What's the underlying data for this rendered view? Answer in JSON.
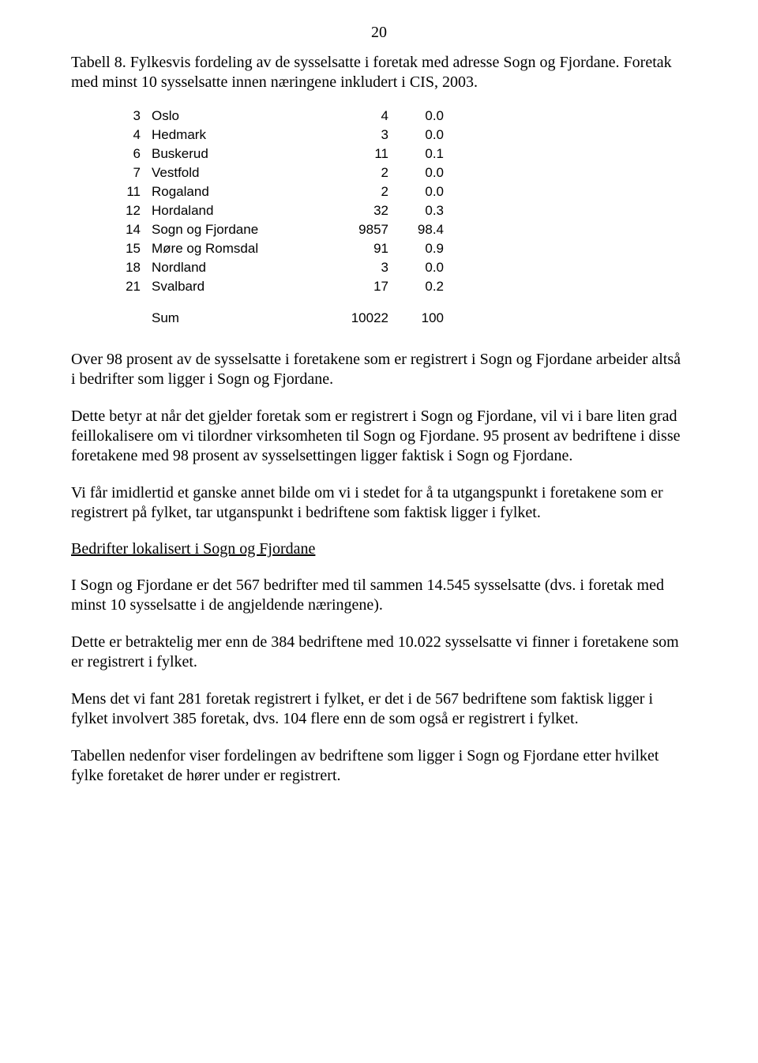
{
  "page_number": "20",
  "caption": "Tabell 8. Fylkesvis fordeling av de sysselsatte i foretak med adresse Sogn og Fjordane. Foretak med minst 10 sysselsatte innen næringene inkludert i CIS, 2003.",
  "table": {
    "rows": [
      {
        "code": "3",
        "name": "Oslo",
        "val": "4",
        "pct": "0.0"
      },
      {
        "code": "4",
        "name": "Hedmark",
        "val": "3",
        "pct": "0.0"
      },
      {
        "code": "6",
        "name": "Buskerud",
        "val": "11",
        "pct": "0.1"
      },
      {
        "code": "7",
        "name": "Vestfold",
        "val": "2",
        "pct": "0.0"
      },
      {
        "code": "11",
        "name": "Rogaland",
        "val": "2",
        "pct": "0.0"
      },
      {
        "code": "12",
        "name": "Hordaland",
        "val": "32",
        "pct": "0.3"
      },
      {
        "code": "14",
        "name": "Sogn og Fjordane",
        "val": "9857",
        "pct": "98.4"
      },
      {
        "code": "15",
        "name": "Møre og Romsdal",
        "val": "91",
        "pct": "0.9"
      },
      {
        "code": "18",
        "name": "Nordland",
        "val": "3",
        "pct": "0.0"
      },
      {
        "code": "21",
        "name": "Svalbard",
        "val": "17",
        "pct": "0.2"
      }
    ],
    "sum": {
      "label": "Sum",
      "val": "10022",
      "pct": "100"
    }
  },
  "para1": "Over 98 prosent av de sysselsatte i foretakene som er registrert i Sogn og Fjordane arbeider altså i bedrifter som ligger i Sogn og Fjordane.",
  "para2": "Dette betyr at når det gjelder foretak som er registrert i Sogn og Fjordane, vil vi i bare liten grad feillokalisere om vi tilordner virksomheten til Sogn og Fjordane. 95 prosent av bedriftene i disse foretakene med 98 prosent av sysselsettingen ligger faktisk i Sogn og Fjordane.",
  "para3": "Vi får imidlertid et ganske annet bilde om vi i stedet for å ta utgangspunkt i foretakene som er registrert på fylket, tar utganspunkt i bedriftene som faktisk ligger i fylket.",
  "section_head": "Bedrifter lokalisert i Sogn og Fjordane",
  "para4": "I Sogn og Fjordane er det 567 bedrifter med til sammen 14.545 sysselsatte (dvs. i foretak med minst 10 sysselsatte i de angjeldende næringene).",
  "para5": "Dette er betraktelig mer enn de 384 bedriftene med 10.022 sysselsatte vi finner i foretakene som er registrert i fylket.",
  "para6": "Mens det vi fant 281 foretak registrert i fylket, er det i de 567 bedriftene som faktisk ligger i fylket involvert 385 foretak, dvs. 104 flere enn de som også er registrert i fylket.",
  "para7": "Tabellen nedenfor viser fordelingen av bedriftene som ligger i Sogn og Fjordane etter hvilket fylke foretaket de hører under er registrert."
}
